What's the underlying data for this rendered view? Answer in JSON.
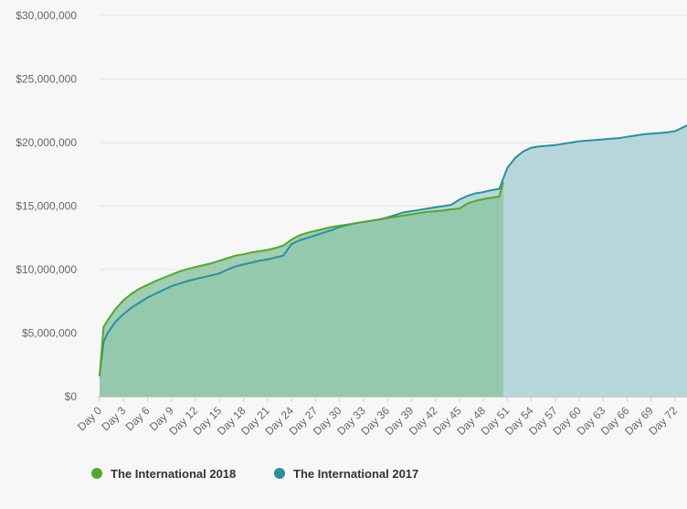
{
  "chart_data": {
    "type": "area",
    "ylim": [
      0,
      30000000
    ],
    "y_ticks": [
      "$0",
      "$5,000,000",
      "$10,000,000",
      "$15,000,000",
      "$20,000,000",
      "$25,000,000",
      "$30,000,000"
    ],
    "x_ticks": [
      "Day 0",
      "Day 3",
      "Day 6",
      "Day 9",
      "Day 12",
      "Day 15",
      "Day 18",
      "Day 21",
      "Day 24",
      "Day 27",
      "Day 30",
      "Day 33",
      "Day 36",
      "Day 39",
      "Day 42",
      "Day 45",
      "Day 48",
      "Day 51",
      "Day 54",
      "Day 57",
      "Day 60",
      "Day 63",
      "Day 66",
      "Day 69",
      "Day 72"
    ],
    "grid": true,
    "legend_position": "bottom-left",
    "series": [
      {
        "name": "The International 2018",
        "color": "#57a52f",
        "fill": "#8fc7a5",
        "x": [
          0,
          0.5,
          1,
          2,
          3,
          4,
          5,
          6,
          7,
          8,
          9,
          10,
          11,
          12,
          13,
          14,
          15,
          16,
          17,
          18,
          19,
          20,
          21,
          22,
          23,
          24,
          25,
          26,
          27,
          28,
          29,
          30,
          31,
          32,
          33,
          34,
          35,
          36,
          37,
          38,
          39,
          40,
          41,
          42,
          43,
          44,
          45,
          46,
          47,
          48,
          49,
          50,
          50.5
        ],
        "y": [
          1600000,
          5500000,
          6000000,
          6900000,
          7600000,
          8100000,
          8500000,
          8800000,
          9100000,
          9350000,
          9600000,
          9850000,
          10050000,
          10200000,
          10350000,
          10500000,
          10700000,
          10900000,
          11100000,
          11200000,
          11350000,
          11450000,
          11550000,
          11700000,
          11900000,
          12350000,
          12700000,
          12900000,
          13050000,
          13200000,
          13350000,
          13450000,
          13550000,
          13650000,
          13750000,
          13850000,
          13950000,
          14050000,
          14150000,
          14250000,
          14350000,
          14450000,
          14550000,
          14600000,
          14650000,
          14750000,
          14800000,
          15200000,
          15400000,
          15550000,
          15650000,
          15750000,
          16900000
        ]
      },
      {
        "name": "The International 2017",
        "color": "#2d8e9e",
        "fill": "#b6d6db",
        "x": [
          0,
          0.5,
          1,
          2,
          3,
          4,
          5,
          6,
          7,
          8,
          9,
          10,
          11,
          12,
          13,
          14,
          15,
          16,
          17,
          18,
          19,
          20,
          21,
          22,
          23,
          24,
          25,
          26,
          27,
          28,
          29,
          30,
          31,
          32,
          33,
          34,
          35,
          36,
          37,
          38,
          39,
          40,
          41,
          42,
          43,
          44,
          45,
          46,
          47,
          48,
          49,
          50,
          51,
          52,
          53,
          54,
          55,
          56,
          57,
          58,
          59,
          60,
          61,
          62,
          63,
          64,
          65,
          66,
          67,
          68,
          69,
          70,
          71,
          72,
          73,
          74
        ],
        "y": [
          1700000,
          4300000,
          5000000,
          5900000,
          6500000,
          7000000,
          7400000,
          7800000,
          8100000,
          8400000,
          8700000,
          8900000,
          9100000,
          9250000,
          9400000,
          9550000,
          9700000,
          10000000,
          10250000,
          10400000,
          10550000,
          10700000,
          10800000,
          10950000,
          11100000,
          12000000,
          12300000,
          12500000,
          12700000,
          12900000,
          13100000,
          13350000,
          13500000,
          13650000,
          13750000,
          13850000,
          13950000,
          14100000,
          14300000,
          14500000,
          14600000,
          14700000,
          14800000,
          14900000,
          15000000,
          15100000,
          15500000,
          15800000,
          16000000,
          16100000,
          16250000,
          16350000,
          18000000,
          18800000,
          19300000,
          19600000,
          19700000,
          19750000,
          19800000,
          19900000,
          20000000,
          20100000,
          20150000,
          20200000,
          20250000,
          20300000,
          20350000,
          20450000,
          20550000,
          20650000,
          20700000,
          20750000,
          20800000,
          20900000,
          21200000,
          21500000
        ]
      }
    ]
  }
}
